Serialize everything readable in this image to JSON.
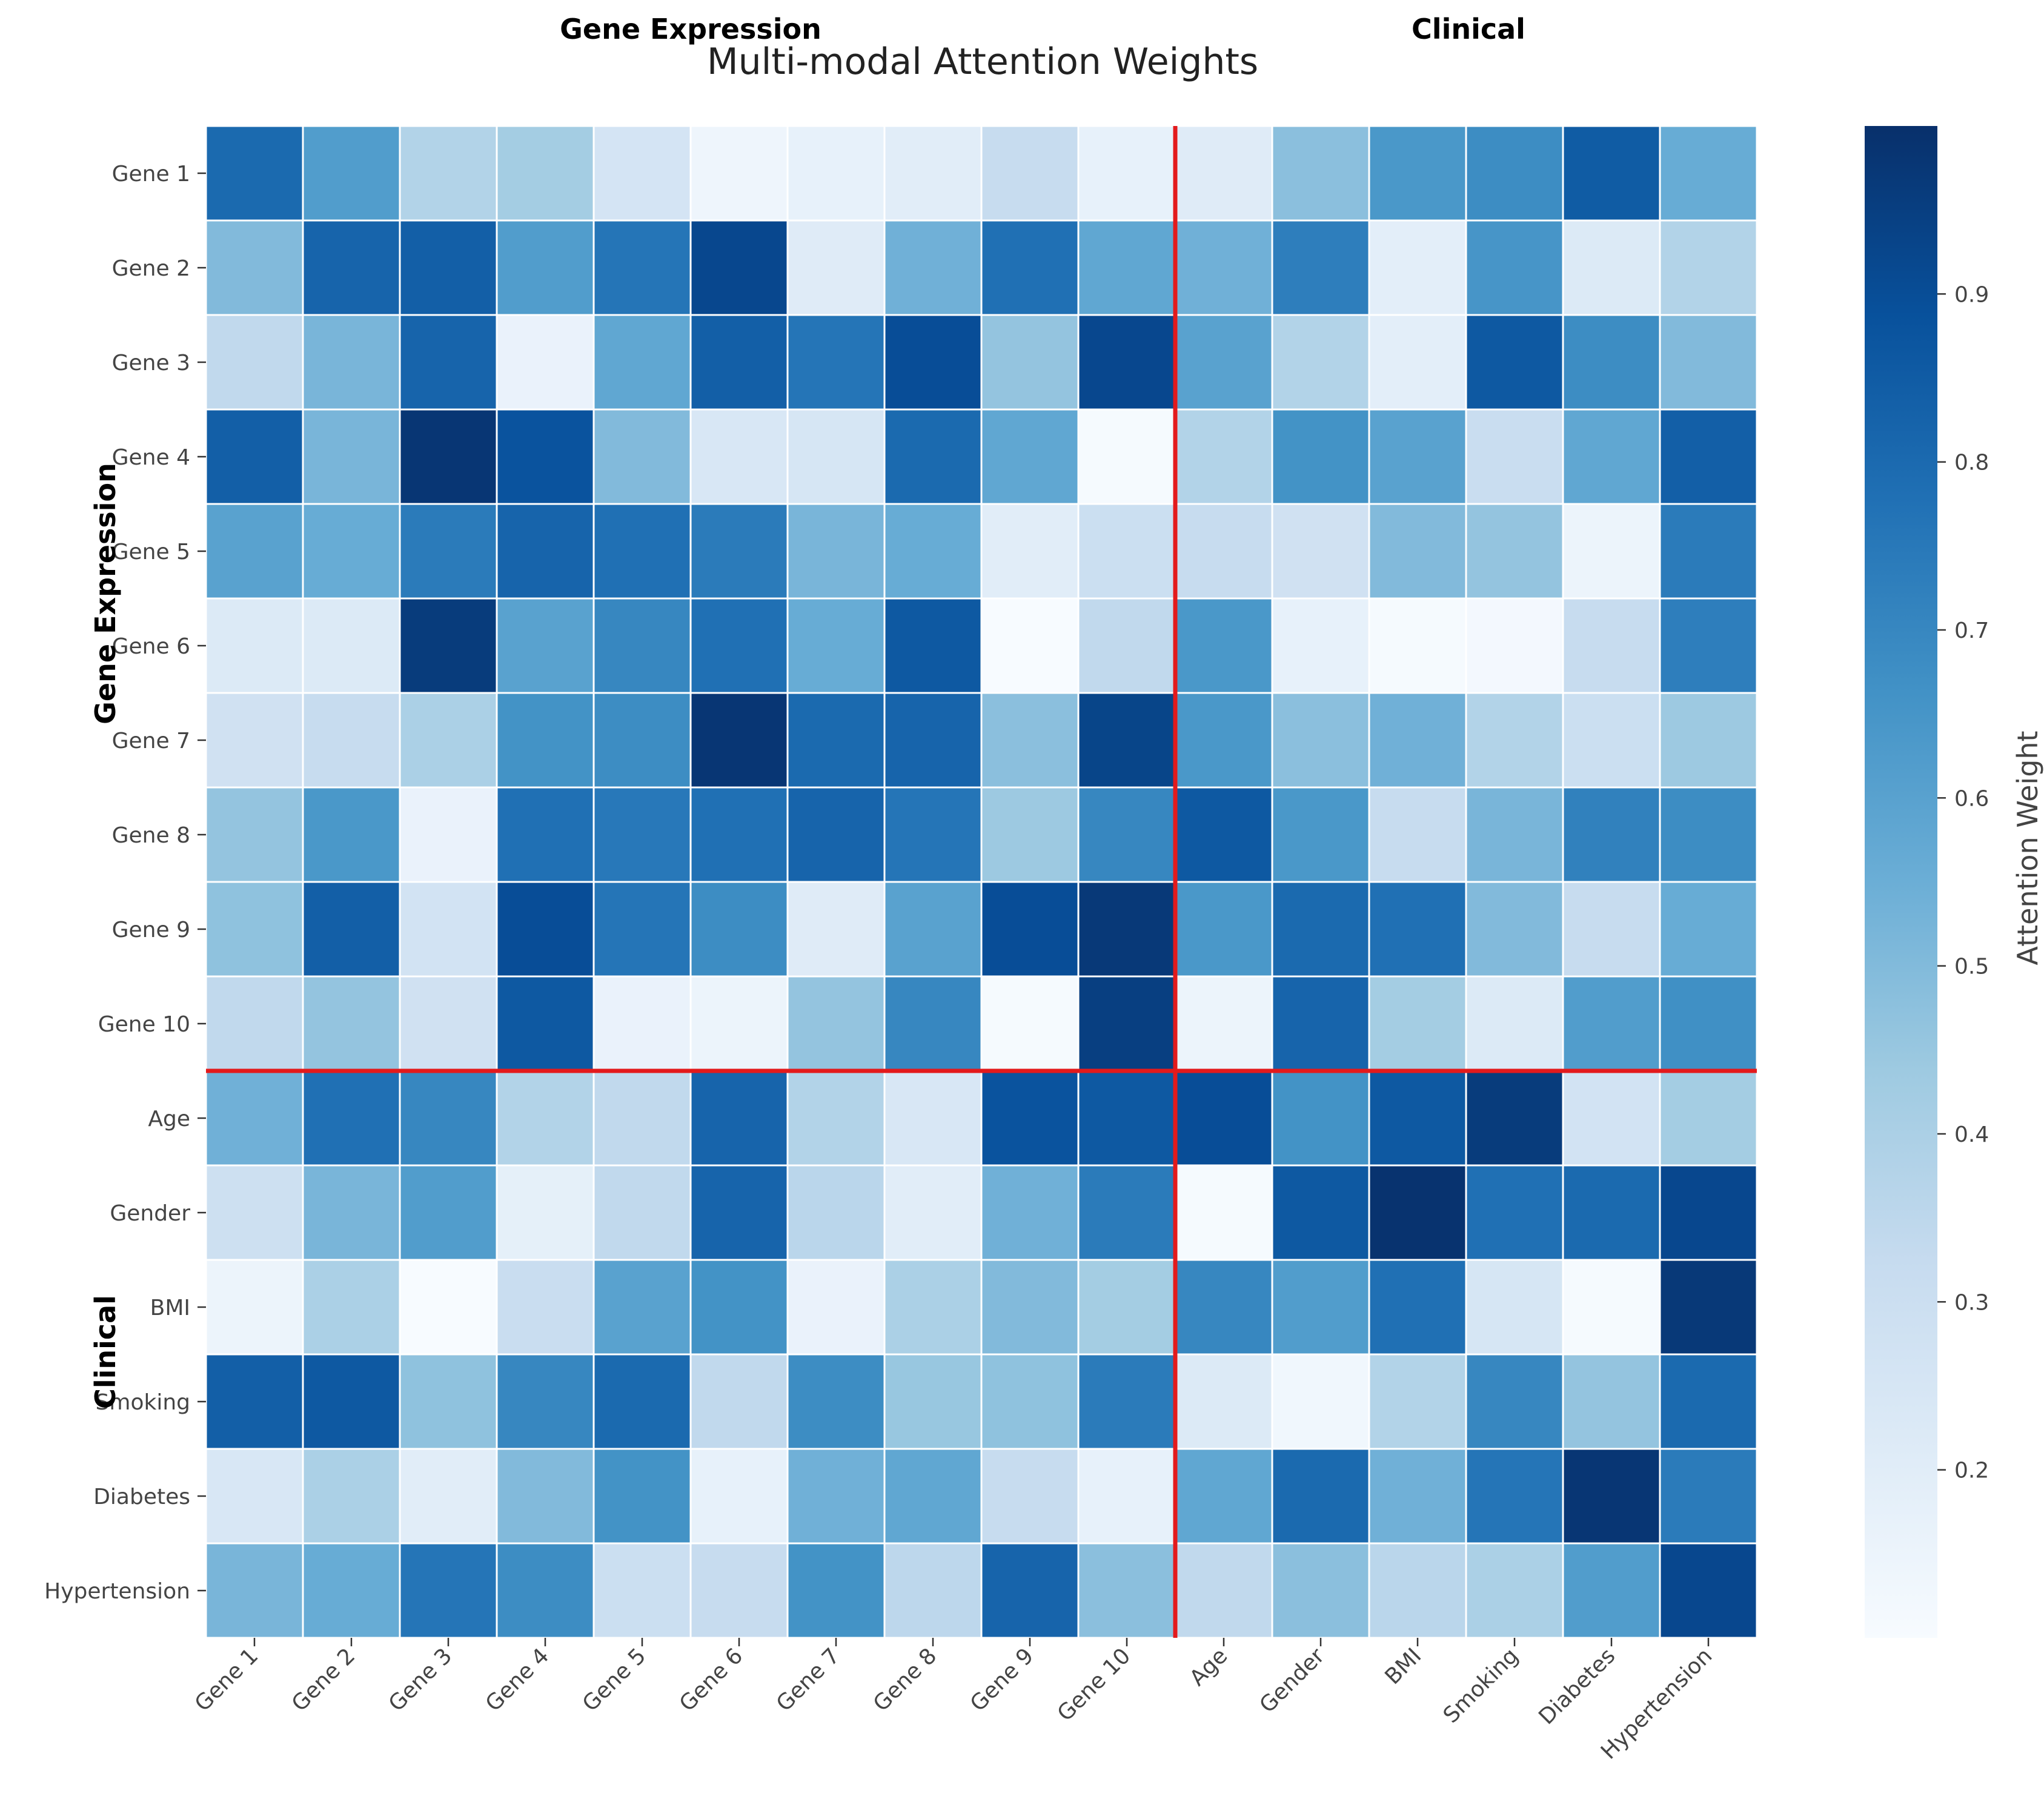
{
  "chart_data": {
    "type": "heatmap",
    "title": "Multi-modal Attention Weights",
    "group_labels": {
      "top": [
        "Gene Expression",
        "Clinical"
      ],
      "left": [
        "Gene Expression",
        "Clinical"
      ]
    },
    "rows": [
      "Gene 1",
      "Gene 2",
      "Gene 3",
      "Gene 4",
      "Gene 5",
      "Gene 6",
      "Gene 7",
      "Gene 8",
      "Gene 9",
      "Gene 10",
      "Age",
      "Gender",
      "BMI",
      "Smoking",
      "Diabetes",
      "Hypertension"
    ],
    "columns": [
      "Gene 1",
      "Gene 2",
      "Gene 3",
      "Gene 4",
      "Gene 5",
      "Gene 6",
      "Gene 7",
      "Gene 8",
      "Gene 9",
      "Gene 10",
      "Age",
      "Gender",
      "BMI",
      "Smoking",
      "Diabetes",
      "Hypertension"
    ],
    "values": [
      [
        0.8,
        0.62,
        0.38,
        0.42,
        0.26,
        0.14,
        0.17,
        0.2,
        0.32,
        0.17,
        0.21,
        0.48,
        0.64,
        0.68,
        0.85,
        0.56
      ],
      [
        0.5,
        0.82,
        0.84,
        0.62,
        0.76,
        0.92,
        0.21,
        0.54,
        0.78,
        0.58,
        0.54,
        0.73,
        0.19,
        0.65,
        0.22,
        0.38
      ],
      [
        0.34,
        0.52,
        0.82,
        0.16,
        0.58,
        0.84,
        0.76,
        0.9,
        0.46,
        0.92,
        0.6,
        0.38,
        0.19,
        0.86,
        0.68,
        0.5
      ],
      [
        0.84,
        0.52,
        0.98,
        0.88,
        0.5,
        0.24,
        0.25,
        0.8,
        0.58,
        0.11,
        0.38,
        0.66,
        0.6,
        0.31,
        0.58,
        0.84
      ],
      [
        0.6,
        0.56,
        0.74,
        0.82,
        0.78,
        0.74,
        0.52,
        0.56,
        0.2,
        0.3,
        0.32,
        0.28,
        0.5,
        0.46,
        0.15,
        0.74
      ],
      [
        0.22,
        0.22,
        0.96,
        0.6,
        0.7,
        0.78,
        0.56,
        0.86,
        0.1,
        0.34,
        0.64,
        0.17,
        0.11,
        0.12,
        0.32,
        0.73
      ],
      [
        0.28,
        0.32,
        0.4,
        0.66,
        0.68,
        0.98,
        0.8,
        0.82,
        0.48,
        0.93,
        0.64,
        0.48,
        0.54,
        0.38,
        0.3,
        0.44
      ],
      [
        0.46,
        0.64,
        0.16,
        0.78,
        0.75,
        0.78,
        0.82,
        0.76,
        0.44,
        0.7,
        0.86,
        0.64,
        0.32,
        0.52,
        0.72,
        0.68
      ],
      [
        0.47,
        0.84,
        0.27,
        0.9,
        0.76,
        0.68,
        0.21,
        0.6,
        0.9,
        0.97,
        0.64,
        0.8,
        0.78,
        0.5,
        0.32,
        0.56
      ],
      [
        0.34,
        0.46,
        0.28,
        0.86,
        0.16,
        0.15,
        0.46,
        0.7,
        0.11,
        0.95,
        0.15,
        0.82,
        0.42,
        0.22,
        0.62,
        0.67
      ],
      [
        0.54,
        0.78,
        0.7,
        0.38,
        0.34,
        0.82,
        0.38,
        0.24,
        0.88,
        0.86,
        0.9,
        0.66,
        0.86,
        0.96,
        0.27,
        0.42
      ],
      [
        0.29,
        0.52,
        0.62,
        0.18,
        0.34,
        0.82,
        0.36,
        0.2,
        0.54,
        0.74,
        0.11,
        0.86,
        0.99,
        0.78,
        0.8,
        0.92
      ],
      [
        0.15,
        0.4,
        0.1,
        0.31,
        0.6,
        0.66,
        0.16,
        0.4,
        0.5,
        0.42,
        0.7,
        0.62,
        0.78,
        0.25,
        0.11,
        0.97
      ],
      [
        0.84,
        0.86,
        0.47,
        0.7,
        0.8,
        0.34,
        0.68,
        0.45,
        0.47,
        0.74,
        0.22,
        0.13,
        0.38,
        0.7,
        0.46,
        0.8
      ],
      [
        0.24,
        0.4,
        0.2,
        0.5,
        0.66,
        0.17,
        0.54,
        0.58,
        0.32,
        0.17,
        0.58,
        0.8,
        0.54,
        0.76,
        0.98,
        0.74
      ],
      [
        0.52,
        0.56,
        0.76,
        0.68,
        0.3,
        0.32,
        0.66,
        0.35,
        0.82,
        0.48,
        0.34,
        0.48,
        0.36,
        0.4,
        0.62,
        0.92
      ]
    ],
    "divider_after_index": 10,
    "color_scale": {
      "name": "Blues",
      "low": "#f7fbff",
      "high": "#08306b",
      "vmin": 0.1,
      "vmax": 1.0
    },
    "colorbar": {
      "label": "Attention Weight",
      "ticks": [
        "0.2",
        "0.3",
        "0.4",
        "0.5",
        "0.6",
        "0.7",
        "0.8",
        "0.9"
      ],
      "tick_values": [
        0.2,
        0.3,
        0.4,
        0.5,
        0.6,
        0.7,
        0.8,
        0.9
      ]
    },
    "divider_color": "#e31a1c",
    "grid": false
  }
}
